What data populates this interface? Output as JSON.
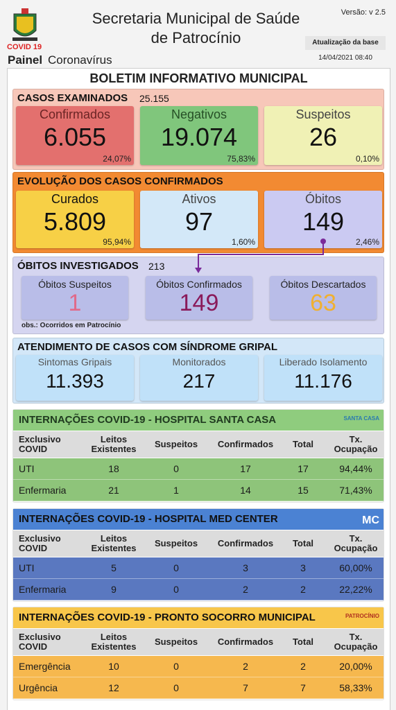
{
  "header": {
    "logo_caption": "COVID 19",
    "title_line1": "Secretaria Municipal de Saúde",
    "title_line2": "de Patrocínio",
    "panel_bold": "Painel",
    "panel_rest": "Coronavírus",
    "version": "Versão: v 2.5",
    "update_label": "Atualização da base",
    "update_time": "14/04/2021 08:40"
  },
  "bulletin_title": "BOLETIM INFORMATIVO MUNICIPAL",
  "summary_sections": [
    {
      "title": "CASOS EXAMINADOS",
      "total": "25.155",
      "cards": [
        {
          "label": "Confirmados",
          "value": "6.055",
          "percent": "24,07%"
        },
        {
          "label": "Negativos",
          "value": "19.074",
          "percent": "75,83%"
        },
        {
          "label": "Suspeitos",
          "value": "26",
          "percent": "0,10%"
        }
      ]
    },
    {
      "title": "EVOLUÇÃO DOS CASOS CONFIRMADOS",
      "cards": [
        {
          "label": "Curados",
          "value": "5.809",
          "percent": "95,94%"
        },
        {
          "label": "Ativos",
          "value": "97",
          "percent": "1,60%"
        },
        {
          "label": "Óbitos",
          "value": "149",
          "percent": "2,46%"
        }
      ]
    },
    {
      "title": "ÓBITOS INVESTIGADOS",
      "total": "213",
      "note": "obs.: Ocorridos em Patrocínio",
      "cards": [
        {
          "label": "Óbitos Suspeitos",
          "value": "1"
        },
        {
          "label": "Óbitos Confirmados",
          "value": "149"
        },
        {
          "label": "Óbitos Descartados",
          "value": "63"
        }
      ]
    },
    {
      "title": "ATENDIMENTO DE CASOS COM SÍNDROME GRIPAL",
      "cards": [
        {
          "label": "Sintomas Gripais",
          "value": "11.393"
        },
        {
          "label": "Monitorados",
          "value": "217"
        },
        {
          "label": "Liberado Isolamento",
          "value": "11.176"
        }
      ]
    }
  ],
  "hospitals": [
    {
      "title": "INTERNAÇÕES COVID-19 - HOSPITAL SANTA CASA",
      "logo": "SANTA CASA",
      "columns": [
        "Exclusivo COVID",
        "Leitos Existentes",
        "Suspeitos",
        "Confirmados",
        "Total",
        "Tx. Ocupação"
      ],
      "rows": [
        [
          "UTI",
          "18",
          "0",
          "17",
          "17",
          "94,44%"
        ],
        [
          "Enfermaria",
          "21",
          "1",
          "14",
          "15",
          "71,43%"
        ]
      ]
    },
    {
      "title": "INTERNAÇÕES COVID-19 - HOSPITAL MED CENTER",
      "logo": "MC",
      "columns": [
        "Exclusivo COVID",
        "Leitos Existentes",
        "Suspeitos",
        "Confirmados",
        "Total",
        "Tx. Ocupação"
      ],
      "rows": [
        [
          "UTI",
          "5",
          "0",
          "3",
          "3",
          "60,00%"
        ],
        [
          "Enfermaria",
          "9",
          "0",
          "2",
          "2",
          "22,22%"
        ]
      ]
    },
    {
      "title": "INTERNAÇÕES COVID-19 - PRONTO SOCORRO MUNICIPAL",
      "logo": "PATROCÍNIO",
      "columns": [
        "Exclusivo COVID",
        "Leitos Existentes",
        "Suspeitos",
        "Confirmados",
        "Total",
        "Tx. Ocupação"
      ],
      "rows": [
        [
          "Emergência",
          "10",
          "0",
          "2",
          "2",
          "20,00%"
        ],
        [
          "Urgência",
          "12",
          "0",
          "7",
          "7",
          "58,33%"
        ]
      ]
    }
  ]
}
